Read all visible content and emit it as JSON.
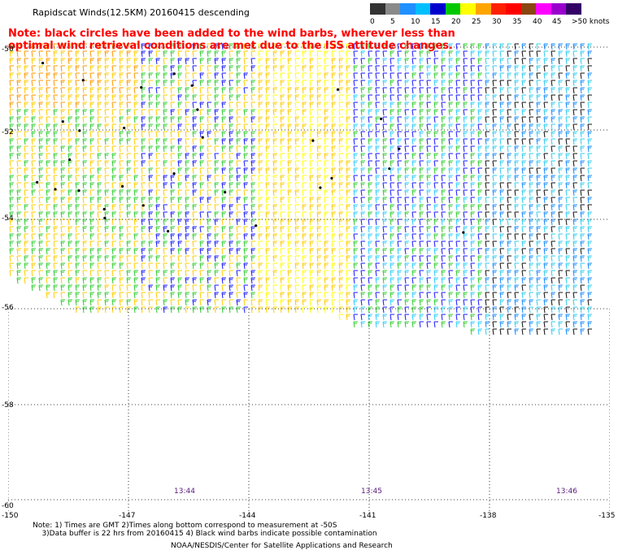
{
  "title": "Rapidscat Winds(12.5KM) 20160415 descending",
  "note": "Note: black circles have been added to the wind barbs, wherever less than optimal wind retrieval conditions are met due to the ISS attitude changes.",
  "legend": {
    "labels": [
      "0",
      "5",
      "10",
      "15",
      "20",
      "25",
      "30",
      "35",
      "40",
      "45",
      ">50 knots"
    ],
    "colors": [
      "#333333",
      "#8a8a8a",
      "#1e90ff",
      "#00bfff",
      "#0000cd",
      "#00c800",
      "#ffff00",
      "#ffa500",
      "#ff2000",
      "#ff0000",
      "#8b4513",
      "#ff00ff",
      "#9900cc",
      "#330066"
    ]
  },
  "lat_labels": [
    "-50",
    "-52",
    "-54",
    "-56",
    "-58",
    "-60"
  ],
  "lon_labels": [
    "-150",
    "-147",
    "-144",
    "-141",
    "-138",
    "-135"
  ],
  "time_labels": [
    "13:44",
    "13:45",
    "13:46"
  ],
  "footnote": "Note: 1) Times are GMT 2)Times along bottom correspond to measurement at -50S\n    3)Data buffer is 22 hrs from 20160415 4) Black wind barbs indicate possible contamination",
  "credit": "NOAA/NESDIS/Center for Satellite Applications and Research"
}
